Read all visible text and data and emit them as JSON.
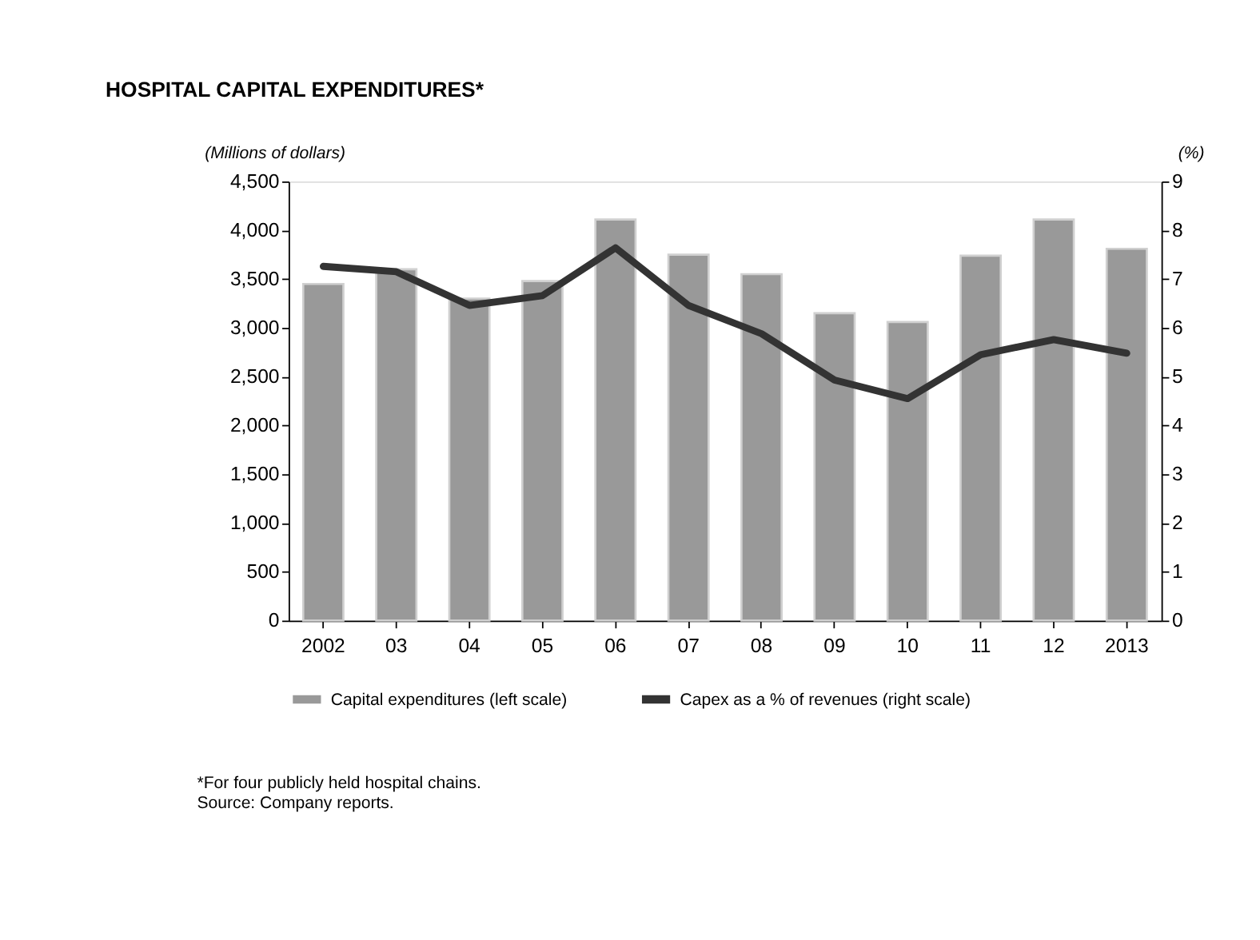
{
  "chart_data": {
    "type": "bar",
    "title": "HOSPITAL CAPITAL EXPENDITURES*",
    "ylabel": "(Millions of dollars)",
    "y2label": "(%)",
    "categories": [
      "2002",
      "03",
      "04",
      "05",
      "06",
      "07",
      "08",
      "09",
      "10",
      "11",
      "12",
      "2013"
    ],
    "series": [
      {
        "name": "Capital expenditures (left scale)",
        "color": "#999999",
        "values": [
          3450,
          3600,
          3300,
          3480,
          4110,
          3750,
          3550,
          3150,
          3060,
          3740,
          4110,
          3810
        ]
      },
      {
        "name": "Capex as a % of revenues (right scale)",
        "type": "line",
        "axis": "y2",
        "color": "#333333",
        "values": [
          7.26,
          7.15,
          6.46,
          6.66,
          7.64,
          6.46,
          5.88,
          4.93,
          4.55,
          5.45,
          5.76,
          5.48
        ]
      }
    ],
    "ylim": [
      0,
      4500
    ],
    "yticks": [
      0,
      500,
      {
        "value": 1000,
        "label": "1,000"
      },
      {
        "value": 1500,
        "label": "1,500"
      },
      {
        "value": 2000,
        "label": "2,000"
      },
      {
        "value": 2500,
        "label": "2,500"
      },
      {
        "value": 3000,
        "label": "3,000"
      },
      {
        "value": 3500,
        "label": "3,500"
      },
      {
        "value": 4000,
        "label": "4,000"
      },
      {
        "value": 4500,
        "label": "4,500"
      }
    ],
    "y2lim": [
      0,
      9
    ],
    "y2ticks": [
      0,
      1,
      2,
      3,
      4,
      5,
      6,
      7,
      8,
      9
    ],
    "legend": "bottom",
    "grid": false,
    "annotations": [
      "*For four publicly held hospital chains.",
      "Source: Company reports."
    ]
  }
}
